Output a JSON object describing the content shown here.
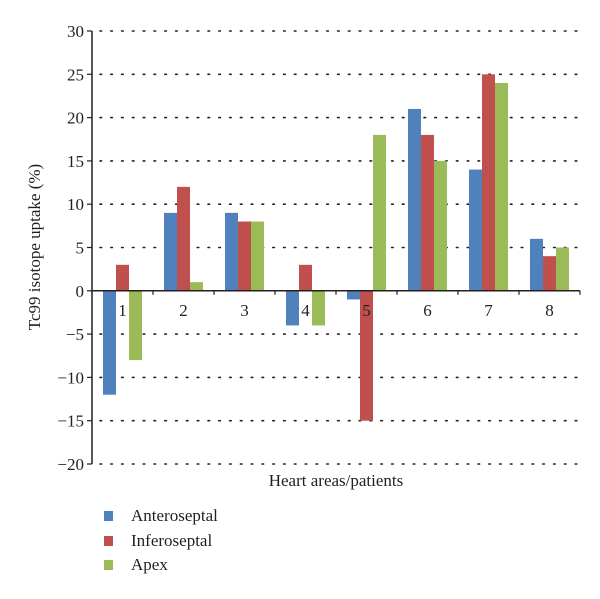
{
  "chart_data": {
    "type": "bar",
    "title": "",
    "xlabel": "Heart areas/patients",
    "ylabel": "Tc99 isotope uptake (%)",
    "categories": [
      "1",
      "2",
      "3",
      "4",
      "5",
      "6",
      "7",
      "8"
    ],
    "ylim": [
      -20,
      30
    ],
    "yticks": [
      30,
      25,
      20,
      15,
      10,
      5,
      0,
      -5,
      -10,
      -15,
      -20
    ],
    "ytick_labels": [
      "30",
      "25",
      "20",
      "15",
      "10",
      "5",
      "0",
      "−5",
      "−10",
      "−15",
      "−20"
    ],
    "grid": "dotted horizontal",
    "legend_position": "bottom-left",
    "series": [
      {
        "name": "Anteroseptal",
        "color": "#4f81bd",
        "values": [
          -12,
          9,
          9,
          -4,
          -1,
          21,
          14,
          6
        ]
      },
      {
        "name": "Inferoseptal",
        "color": "#c0504d",
        "values": [
          3,
          12,
          8,
          3,
          -15,
          18,
          25,
          4
        ]
      },
      {
        "name": "Apex",
        "color": "#9bbb59",
        "values": [
          -8,
          1,
          8,
          -4,
          18,
          15,
          24,
          5
        ]
      }
    ]
  }
}
